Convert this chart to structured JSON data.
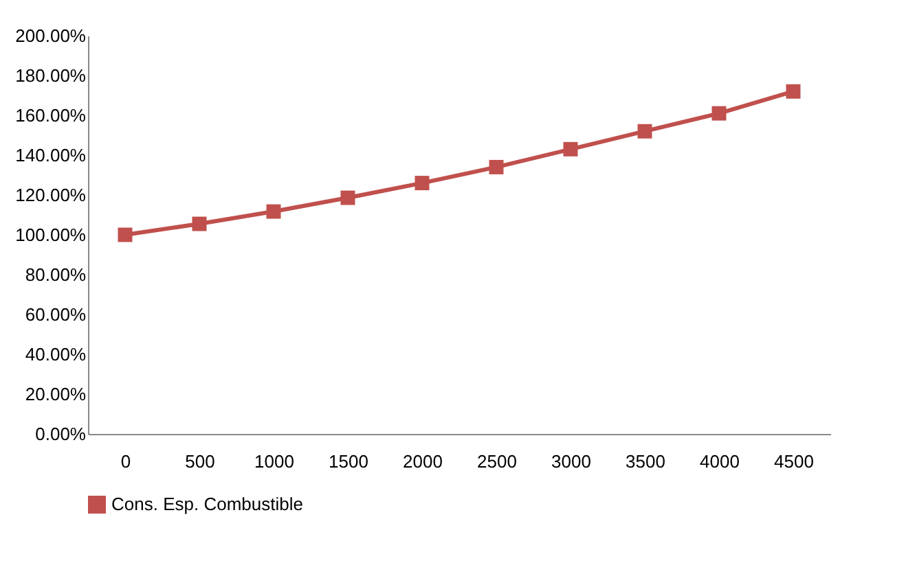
{
  "chart_data": {
    "type": "line",
    "categories": [
      "0",
      "500",
      "1000",
      "1500",
      "2000",
      "2500",
      "3000",
      "3500",
      "4000",
      "4500"
    ],
    "series": [
      {
        "name": "Cons. Esp. Combustible",
        "color": "#c0504d",
        "values": [
          100,
          105.5,
          111.7,
          118.6,
          126,
          134,
          143,
          152,
          161,
          172
        ]
      }
    ],
    "ylim": [
      0,
      200
    ],
    "yticks": [
      {
        "value": 0,
        "label": "0.00%"
      },
      {
        "value": 20,
        "label": "20.00%"
      },
      {
        "value": 40,
        "label": "40.00%"
      },
      {
        "value": 60,
        "label": "60.00%"
      },
      {
        "value": 80,
        "label": "80.00%"
      },
      {
        "value": 100,
        "label": "100.00%"
      },
      {
        "value": 120,
        "label": "120.00%"
      },
      {
        "value": 140,
        "label": "140.00%"
      },
      {
        "value": 160,
        "label": "160.00%"
      },
      {
        "value": 180,
        "label": "180.00%"
      },
      {
        "value": 200,
        "label": "200.00%"
      }
    ],
    "grid": false,
    "legend": "bottom",
    "marker": "square",
    "line_style": "solid"
  }
}
